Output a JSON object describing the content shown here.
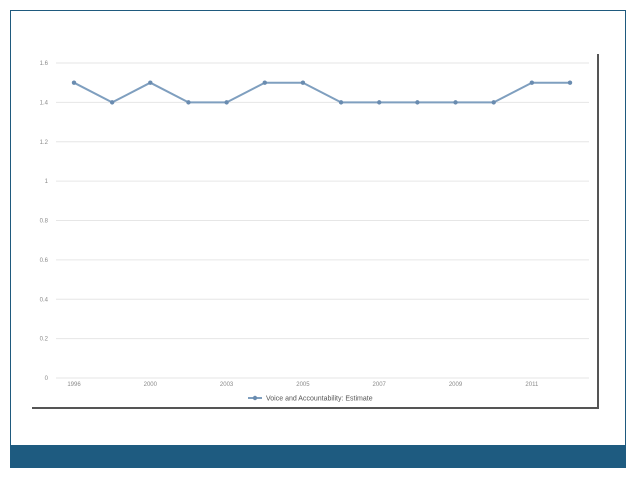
{
  "chart_data": {
    "type": "line",
    "categories": [
      "1996",
      "1998",
      "2000",
      "2002",
      "2003",
      "2004",
      "2005",
      "2006",
      "2007",
      "2008",
      "2009",
      "2010",
      "2011",
      "2012"
    ],
    "x_tick_labels": [
      "1996",
      "2000",
      "2003",
      "2005",
      "2007",
      "2009",
      "2011"
    ],
    "series": [
      {
        "name": "Voice and Accountability: Estimate",
        "values": [
          1.5,
          1.4,
          1.5,
          1.4,
          1.4,
          1.5,
          1.5,
          1.4,
          1.4,
          1.4,
          1.4,
          1.4,
          1.5,
          1.5
        ]
      }
    ],
    "ylim": [
      0,
      1.6
    ],
    "y_ticks": [
      "0",
      "0.2",
      "0.4",
      "0.6",
      "0.8",
      "1",
      "1.2",
      "1.4",
      "1.6"
    ],
    "grid": true,
    "legend_position": "bottom-center",
    "colors": {
      "line": "#7f9fbf",
      "marker": "#6a8cb0",
      "grid": "#e6e6e6",
      "band": "#1e5b80"
    }
  }
}
